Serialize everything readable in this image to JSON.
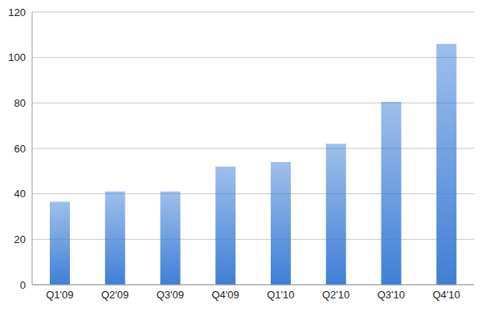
{
  "chart_data": {
    "type": "bar",
    "categories": [
      "Q1'09",
      "Q2'09",
      "Q3'09",
      "Q4'09",
      "Q1'10",
      "Q2'10",
      "Q3'10",
      "Q4'10"
    ],
    "values": [
      36.5,
      41,
      41,
      52,
      54,
      62,
      80.5,
      106
    ],
    "color": "#3f7fd6",
    "ylim": [
      0,
      120
    ],
    "yticks": [
      0,
      20,
      40,
      60,
      80,
      100,
      120
    ],
    "grid": true
  }
}
